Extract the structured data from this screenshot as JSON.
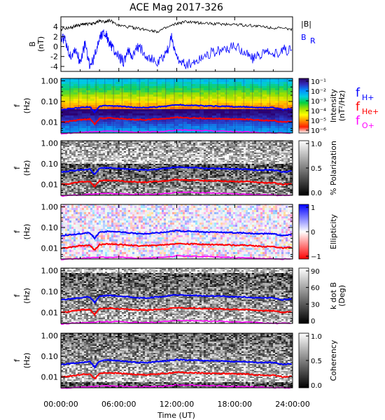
{
  "title": "ACE Mag 2017-326",
  "chart_data": {
    "type": "heatmap",
    "title": "ACE Mag 2017-326",
    "xlabel": "Time (UT)",
    "x_ticks": [
      "00:00:00",
      "06:00:00",
      "12:00:00",
      "18:00:00",
      "24:00:00"
    ],
    "xlim_hours": [
      0,
      24
    ],
    "panels": [
      {
        "id": "b-field",
        "type": "line",
        "ylabel": "B",
        "yunit": "(nT)",
        "ylim": [
          -5,
          6
        ],
        "yticks": [
          "4",
          "2",
          "0",
          "-2",
          "-4"
        ],
        "legend": [
          "|B|",
          "B_R"
        ],
        "series": [
          {
            "name": "|B|",
            "color": "#000000",
            "x": [
              0,
              1,
              1.5,
              2,
              2.5,
              3,
              3.5,
              4,
              4.5,
              5,
              6,
              7,
              8,
              9,
              10,
              11,
              12,
              13,
              14,
              15,
              16,
              17,
              18,
              19,
              20,
              21,
              22,
              23,
              24
            ],
            "y": [
              3.5,
              3.8,
              4.2,
              4.3,
              4.6,
              4.5,
              4.7,
              5.2,
              5.0,
              5.3,
              4.2,
              4.0,
              3.6,
              3.4,
              3.0,
              3.8,
              4.6,
              5.0,
              4.8,
              4.7,
              4.6,
              4.5,
              4.5,
              4.3,
              4.2,
              4.0,
              3.8,
              3.6,
              3.5
            ]
          },
          {
            "name": "B_R",
            "color": "#0000ff",
            "x": [
              0,
              0.5,
              1,
              1.5,
              2,
              2.5,
              3,
              3.5,
              4,
              4.5,
              5,
              5.5,
              6,
              6.5,
              7,
              7.5,
              8,
              9,
              10,
              11,
              11.5,
              12,
              13,
              14,
              15,
              16,
              17,
              18,
              19,
              20,
              21,
              22,
              23,
              24
            ],
            "y": [
              2,
              1,
              -2,
              -0.5,
              -3,
              0.5,
              -4,
              -2,
              2,
              3,
              1,
              -1,
              -2,
              -3,
              -1,
              -2,
              0,
              -2,
              -3.5,
              -1,
              2,
              -2.5,
              -3.5,
              -3,
              -1.5,
              -1,
              -0.5,
              0,
              -1,
              -2.5,
              -1,
              -2,
              -0.5,
              -1
            ]
          }
        ]
      },
      {
        "id": "intensity",
        "type": "heatmap",
        "ylabel": "f",
        "yunit": "(Hz)",
        "yticks": [
          "1.00",
          "0.10",
          "0.01"
        ],
        "colorbar": {
          "label": "Intensity",
          "unit": "(nT²/Hz)",
          "ticks": [
            "10⁻¹",
            "10⁻²",
            "10⁻³",
            "10⁻⁴",
            "10⁻⁵",
            "10⁻⁶"
          ],
          "colors": [
            "#2c0060",
            "#3030c0",
            "#0090ff",
            "#00d0e0",
            "#00d040",
            "#a0e000",
            "#ffff00",
            "#ff9000",
            "#ff2000",
            "#ffffff"
          ]
        },
        "gyro_legend": [
          {
            "label": "f",
            "sub": "H+",
            "color": "#0000ff"
          },
          {
            "label": "f",
            "sub": "He+",
            "color": "#ff0000"
          },
          {
            "label": "f",
            "sub": "O+",
            "color": "#ff00ff"
          }
        ]
      },
      {
        "id": "polarization",
        "type": "heatmap",
        "ylabel": "f",
        "yunit": "(Hz)",
        "yticks": [
          "1.00",
          "0.10",
          "0.01"
        ],
        "colorbar": {
          "label": "% Polarization",
          "unit": "",
          "ticks": [
            "1.0",
            "0.5",
            "0.0"
          ],
          "colors": [
            "#ffffff",
            "#000000"
          ]
        }
      },
      {
        "id": "ellipticity",
        "type": "heatmap",
        "ylabel": "f",
        "yunit": "(Hz)",
        "yticks": [
          "1.00",
          "0.10",
          "0.01"
        ],
        "colorbar": {
          "label": "Ellipticity",
          "unit": "",
          "ticks": [
            "1",
            "0",
            "−1"
          ],
          "colors": [
            "#0000ff",
            "#ffffff",
            "#ff0000"
          ]
        }
      },
      {
        "id": "kdotb",
        "type": "heatmap",
        "ylabel": "f",
        "yunit": "(Hz)",
        "yticks": [
          "1.00",
          "0.10",
          "0.01"
        ],
        "colorbar": {
          "label": "k dot B",
          "unit": "(Deg)",
          "ticks": [
            "90",
            "60",
            "30",
            "0"
          ],
          "colors": [
            "#ffffff",
            "#000000"
          ]
        }
      },
      {
        "id": "coherency",
        "type": "heatmap",
        "ylabel": "f",
        "yunit": "(Hz)",
        "yticks": [
          "1.00",
          "0.10",
          "0.01"
        ],
        "colorbar": {
          "label": "Coherency",
          "unit": "",
          "ticks": [
            "1.0",
            "0.5",
            "0.0"
          ],
          "colors": [
            "#ffffff",
            "#000000"
          ]
        }
      }
    ],
    "gyrofrequency_lines": [
      {
        "name": "f_H+",
        "color": "#0000ff",
        "hours": [
          0,
          1,
          2,
          3,
          3.5,
          4,
          5,
          6,
          7,
          8,
          9,
          10,
          11,
          12,
          13,
          14,
          15,
          16,
          17,
          18,
          19,
          20,
          21,
          22,
          23,
          24
        ],
        "freq_hz": [
          0.04,
          0.045,
          0.05,
          0.055,
          0.03,
          0.06,
          0.065,
          0.06,
          0.055,
          0.05,
          0.05,
          0.055,
          0.06,
          0.07,
          0.065,
          0.065,
          0.06,
          0.06,
          0.058,
          0.055,
          0.055,
          0.05,
          0.05,
          0.05,
          0.04,
          0.045
        ]
      },
      {
        "name": "f_He+",
        "color": "#ff0000",
        "hours": [
          0,
          1,
          2,
          3,
          3.5,
          4,
          5,
          6,
          7,
          8,
          9,
          10,
          11,
          12,
          13,
          14,
          15,
          16,
          17,
          18,
          19,
          20,
          21,
          22,
          23,
          24
        ],
        "freq_hz": [
          0.01,
          0.011,
          0.013,
          0.014,
          0.008,
          0.015,
          0.016,
          0.015,
          0.014,
          0.013,
          0.013,
          0.014,
          0.015,
          0.017,
          0.016,
          0.016,
          0.015,
          0.015,
          0.0145,
          0.014,
          0.014,
          0.013,
          0.012,
          0.012,
          0.01,
          0.011
        ]
      },
      {
        "name": "f_O+",
        "color": "#ff00ff",
        "hours": [
          0,
          2,
          4,
          6,
          8,
          10,
          12,
          14,
          16,
          18,
          20,
          22,
          24
        ],
        "freq_hz": [
          0.0028,
          0.0032,
          0.0036,
          0.0036,
          0.0033,
          0.0034,
          0.0042,
          0.004,
          0.0038,
          0.0035,
          0.0033,
          0.003,
          0.003
        ]
      }
    ]
  }
}
